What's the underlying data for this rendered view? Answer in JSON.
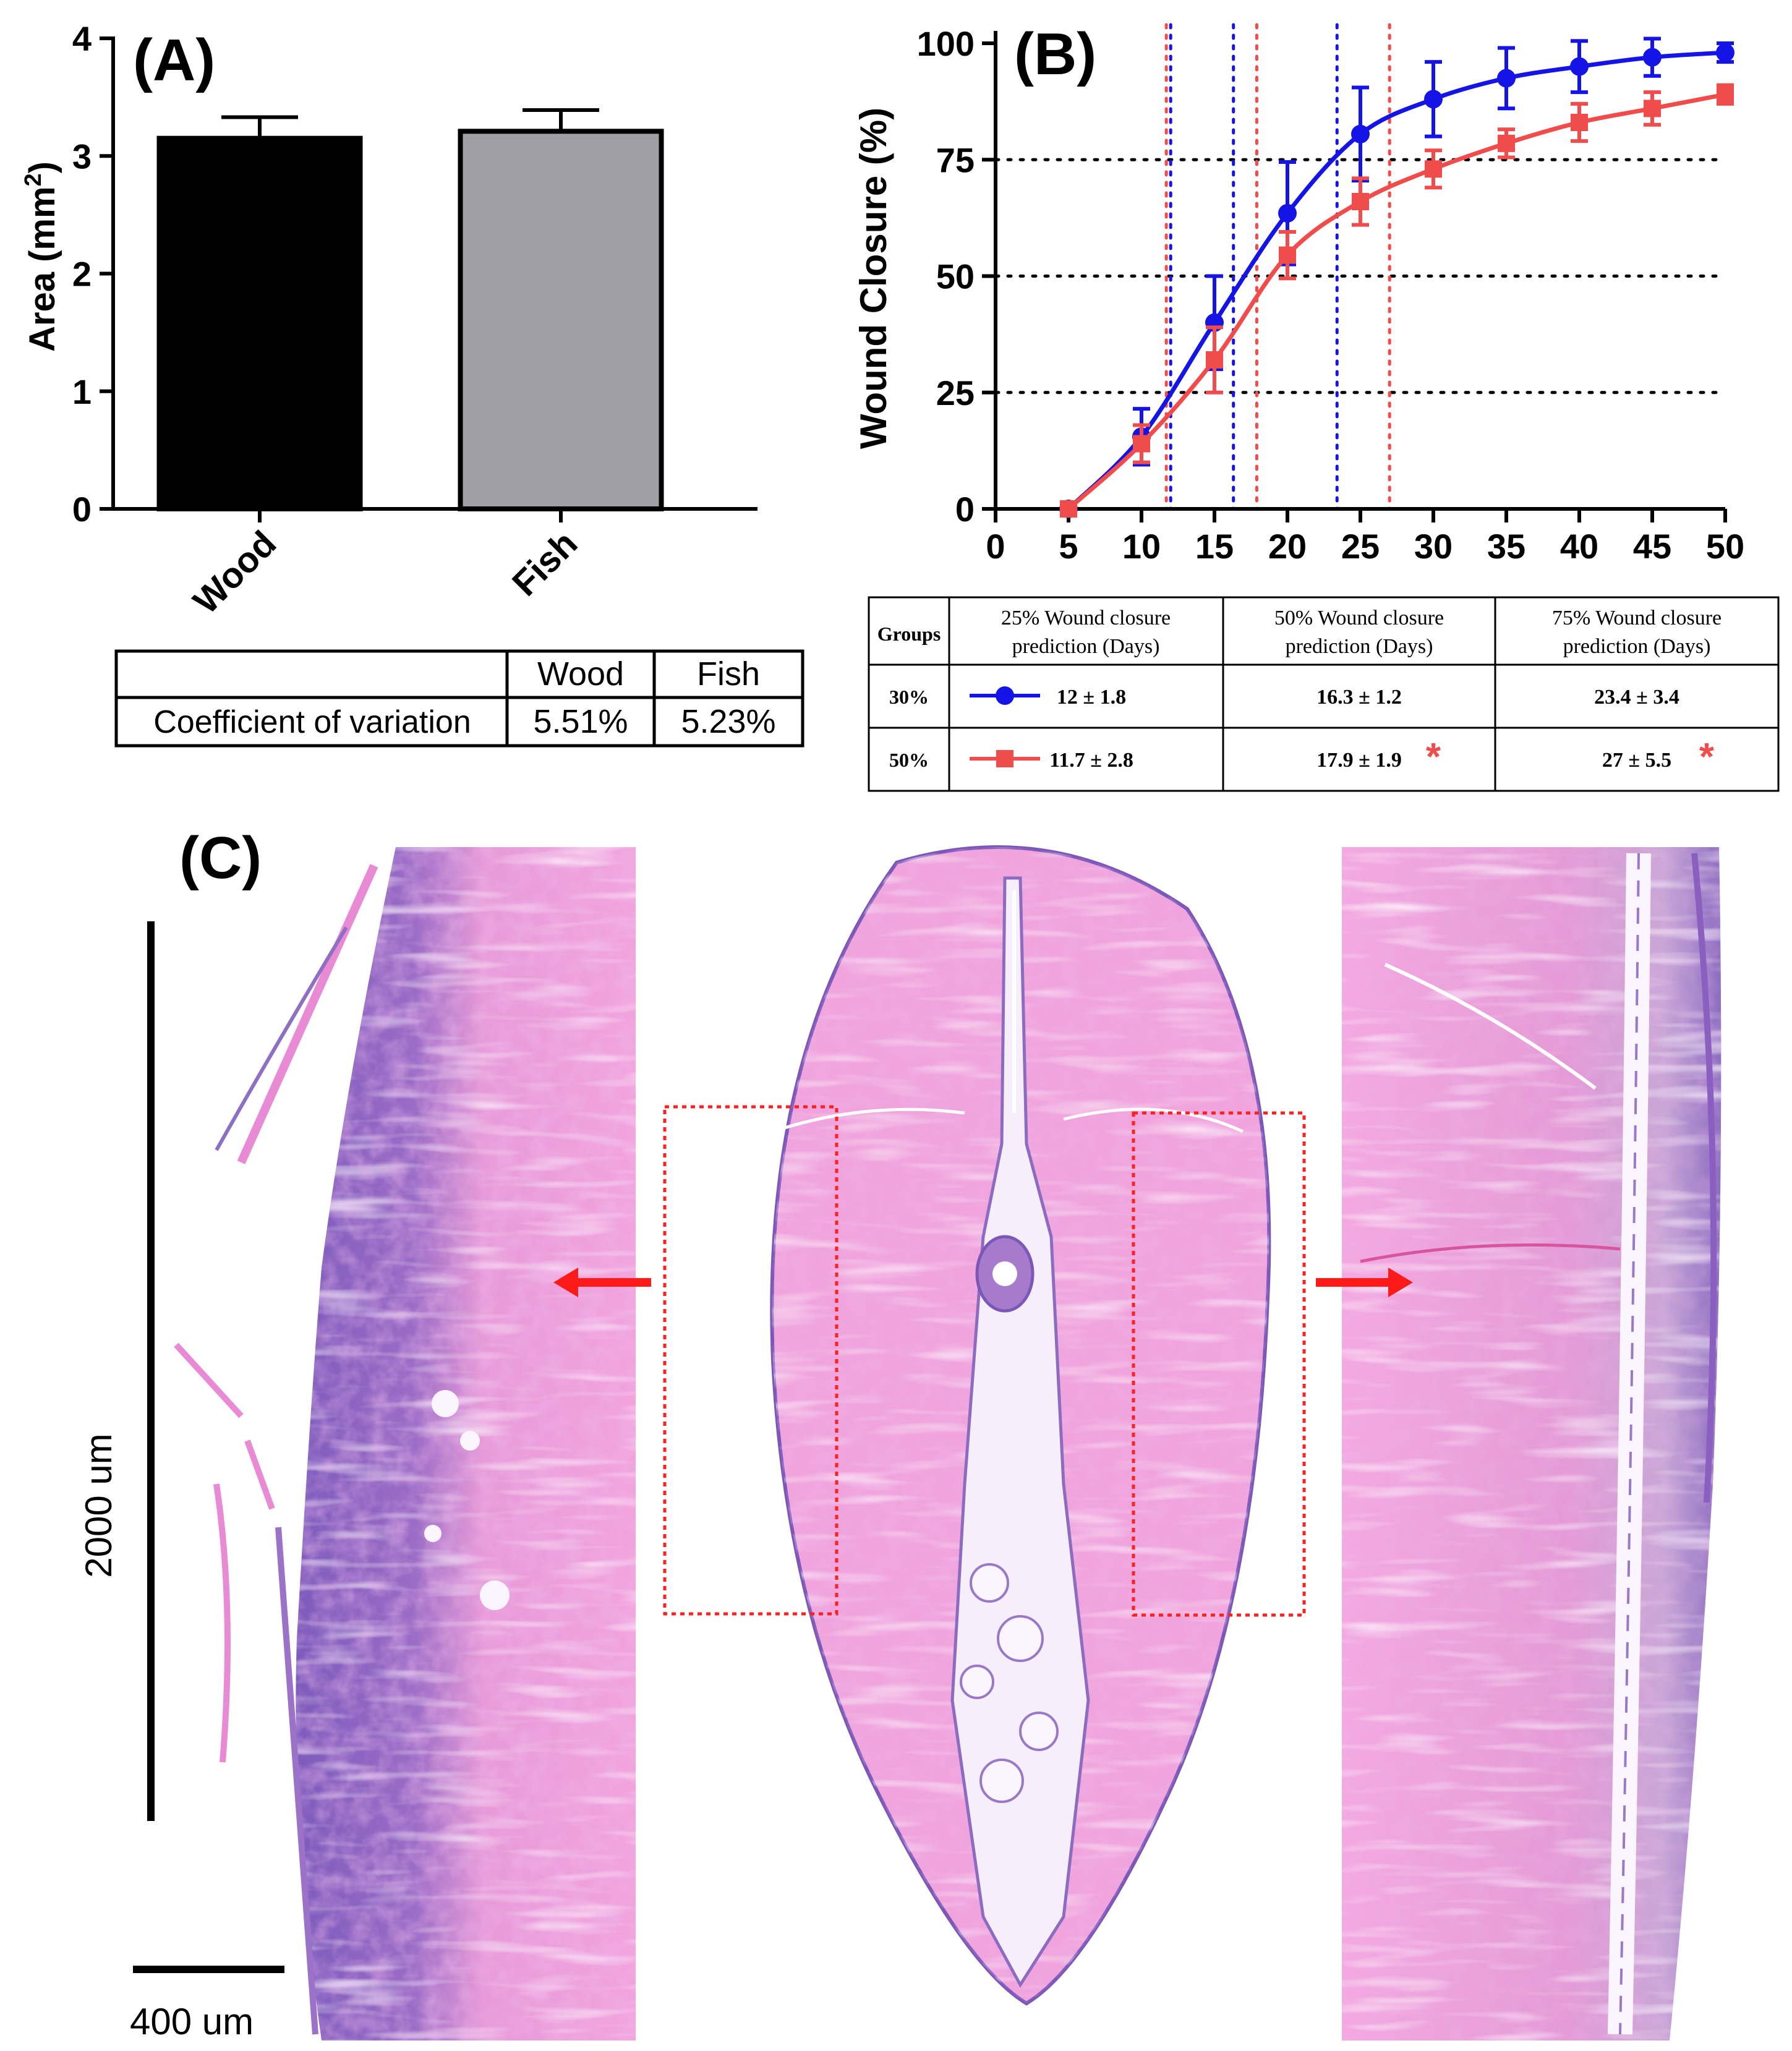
{
  "chart_data": [
    {
      "panel": "(A)",
      "type": "bar",
      "categories": [
        "Wood",
        "Fish"
      ],
      "values": [
        3.15,
        3.21
      ],
      "errors": [
        0.18,
        0.18
      ],
      "ylabel": "Area (mm",
      "ylabel_sup": "2",
      "ylabel_end": ")",
      "ylim": [
        0,
        4
      ],
      "yticks": [
        "0",
        "1",
        "2",
        "3",
        "4"
      ],
      "bar_colors": [
        "#000000",
        "#a09fa5"
      ],
      "table": {
        "headers": [
          "Wood",
          "Fish"
        ],
        "row_label": "Coefficient of variation",
        "values": [
          "5.51%",
          "5.23%"
        ]
      }
    },
    {
      "panel": "(B)",
      "type": "line",
      "ylabel": "Wound Closure (%)",
      "xlabel": "",
      "xlim": [
        0,
        50
      ],
      "ylim": [
        0,
        100
      ],
      "xticks": [
        "0",
        "5",
        "10",
        "15",
        "20",
        "25",
        "30",
        "35",
        "40",
        "45",
        "50"
      ],
      "yticks": [
        "0",
        "25",
        "50",
        "75",
        "100"
      ],
      "reference_lines_y": [
        25,
        50,
        75
      ],
      "series": [
        {
          "name": "30%",
          "color": "#1414e6",
          "marker": "circle",
          "x": [
            5,
            10,
            15,
            20,
            25,
            30,
            35,
            40,
            45,
            50
          ],
          "y": [
            0,
            15.5,
            40,
            63.5,
            80.5,
            88,
            92.5,
            95,
            97,
            98
          ],
          "err": [
            0.5,
            6,
            10,
            11,
            10,
            8,
            6.5,
            5.5,
            4,
            2
          ],
          "vlines": [
            12,
            16.3,
            23.4
          ]
        },
        {
          "name": "50%",
          "color": "#f04c4c",
          "marker": "square",
          "x": [
            5,
            10,
            15,
            20,
            25,
            30,
            35,
            40,
            45,
            50
          ],
          "y": [
            0,
            14,
            32,
            54.5,
            66,
            73,
            78.5,
            83,
            86,
            89
          ],
          "err": [
            0.5,
            4,
            7,
            5,
            5,
            4,
            3,
            4,
            3.5,
            2
          ],
          "vlines": [
            11.7,
            17.9,
            27
          ]
        }
      ],
      "table": {
        "col_groups": "Groups",
        "headers": [
          [
            "25% Wound closure",
            "prediction (Days)"
          ],
          [
            "50% Wound closure",
            "prediction (Days)"
          ],
          [
            "75% Wound closure",
            "prediction (Days)"
          ]
        ],
        "rows": [
          {
            "group": "30%",
            "values": [
              "12 ± 1.8",
              "16.3 ± 1.2",
              "23.4 ± 3.4"
            ],
            "stars": [
              "",
              "",
              ""
            ]
          },
          {
            "group": "50%",
            "values": [
              "11.7 ± 2.8",
              "17.9 ± 1.9",
              "27 ± 5.5"
            ],
            "stars": [
              "",
              "*",
              "*"
            ]
          }
        ]
      }
    }
  ],
  "histology": {
    "panel": "(C)",
    "scale_long": "2000 um",
    "scale_short": "400 um"
  },
  "colors": {
    "blue": "#1414e6",
    "red": "#f04c4c",
    "tissue_pink": "#ef9ad8",
    "tissue_purple": "#7b58b8"
  }
}
